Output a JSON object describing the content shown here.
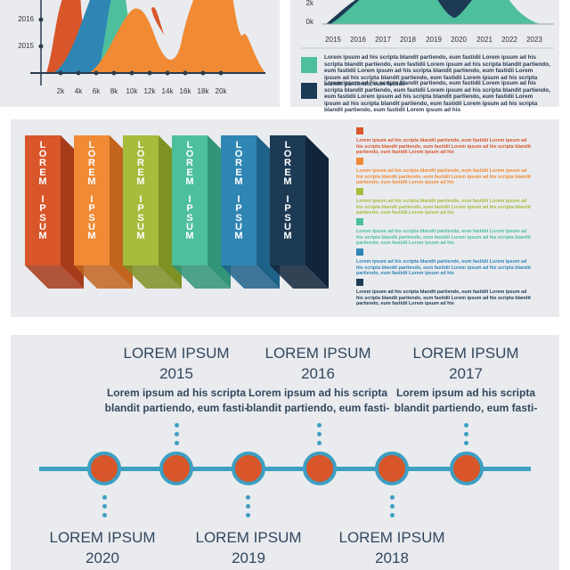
{
  "top_left_chart": {
    "y_labels": [
      "2016",
      "2015"
    ],
    "x_labels": [
      "2k",
      "4k",
      "6k",
      "8k",
      "10k",
      "12k",
      "14k",
      "16k",
      "18k",
      "20k"
    ]
  },
  "top_right_chart": {
    "y_labels": [
      "2k",
      "0k"
    ],
    "x_labels": [
      "2015",
      "2016",
      "2017",
      "2018",
      "2019",
      "2020",
      "2021",
      "2022",
      "2023"
    ],
    "legend": [
      {
        "color": "#4dbf9c",
        "text": "Lorem ipsum ad his scripta blandit partiendo, eum fastidii Lorem ipsum ad his scripta blandit partiendo, eum fastidii Lorem ipsum ad his scripta blandit partiendo, eum fastidii Lorem ipsum ad his scripta blandit partiendo, eum fastidii Lorem ipsum ad his scripta blandit partiendo, eum fastidii Lorem ipsum ad his scripta blandit partiendo, eum fastidii"
      },
      {
        "color": "#1d3a55",
        "text": "Lorem ipsum ad his scripta blandit partiendo, eum fastidii Lorem ipsum ad his scripta blandit partiendo, eum fastidii Lorem ipsum ad his scripta blandit partiendo, eum fastidii Lorem ipsum ad his scripta blandit partiendo, eum fastidii Lorem ipsum ad his scripta blandit partiendo, eum fastidii Lorem ipsum ad his scripta blandit partiendo, eum fastidii Lorem ipsum ad his"
      }
    ]
  },
  "blocks": [
    {
      "label": "LOREM IPSUM",
      "color": "#d8562a",
      "side": "#a63b1a"
    },
    {
      "label": "LOREM IPSUM",
      "color": "#f08a34",
      "side": "#c1651e"
    },
    {
      "label": "LOREM IPSUM",
      "color": "#a6bc3c",
      "side": "#7d9124"
    },
    {
      "label": "LOREM IPSUM",
      "color": "#4dbf9c",
      "side": "#329478"
    },
    {
      "label": "LOREM IPSUM",
      "color": "#2f86b4",
      "side": "#1f6288"
    },
    {
      "label": "LOREM IPSUM",
      "color": "#1d3a55",
      "side": "#10243a"
    }
  ],
  "block_legend": [
    {
      "color": "#d8562a",
      "text": "Lorem ipsum ad his scripta blandit partiendo, eum fastidii Lorem ipsum ad his scripta blandit partiendo, eum fastidii Lorem ipsum ad his scripta blandit partiendo, eum fastidii Lorem ipsum ad his"
    },
    {
      "color": "#f08a34",
      "text": "Lorem ipsum ad his scripta blandit partiendo, eum fastidii Lorem ipsum ad his scripta blandit partiendo, eum fastidii Lorem ipsum ad his scripta blandit partiendo, eum fastidii Lorem ipsum ad his"
    },
    {
      "color": "#a6bc3c",
      "text": "Lorem ipsum ad his scripta blandit partiendo, eum fastidii Lorem ipsum ad his scripta blandit partiendo, eum fastidii Lorem ipsum ad his scripta blandit partiendo, eum fastidii Lorem ipsum ad his"
    },
    {
      "color": "#4dbf9c",
      "text": "Lorem ipsum ad his scripta blandit partiendo, eum fastidii Lorem ipsum ad his scripta blandit partiendo, eum fastidii Lorem ipsum ad his scripta blandit partiendo, eum fastidii Lorem ipsum ad his"
    },
    {
      "color": "#2f86b4",
      "text": "Lorem ipsum ad his scripta blandit partiendo, eum fastidii Lorem ipsum ad his scripta blandit partiendo, eum fastidii Lorem ipsum ad his scripta blandit partiendo, eum fastidii Lorem ipsum ad his"
    },
    {
      "color": "#1d3a55",
      "text": "Lorem ipsum ad his scripta blandit partiendo, eum fastidii Lorem ipsum ad his scripta blandit partiendo, eum fastidii Lorem ipsum ad his scripta blandit partiendo, eum fastidii Lorem ipsum ad his"
    }
  ],
  "timeline": {
    "top": [
      {
        "title": "LOREM IPSUM",
        "year": "2015",
        "desc": "Lorem ipsum ad his scripta blandit partiendo, eum fasti-"
      },
      {
        "title": "LOREM IPSUM",
        "year": "2016",
        "desc": "Lorem ipsum ad his scripta blandit partiendo, eum fasti-"
      },
      {
        "title": "LOREM IPSUM",
        "year": "2017",
        "desc": "Lorem ipsum ad his scripta blandit partiendo, eum fasti-"
      }
    ],
    "bottom": [
      {
        "title": "LOREM IPSUM",
        "year": "2020"
      },
      {
        "title": "LOREM IPSUM",
        "year": "2019"
      },
      {
        "title": "LOREM IPSUM",
        "year": "2018"
      }
    ]
  }
}
